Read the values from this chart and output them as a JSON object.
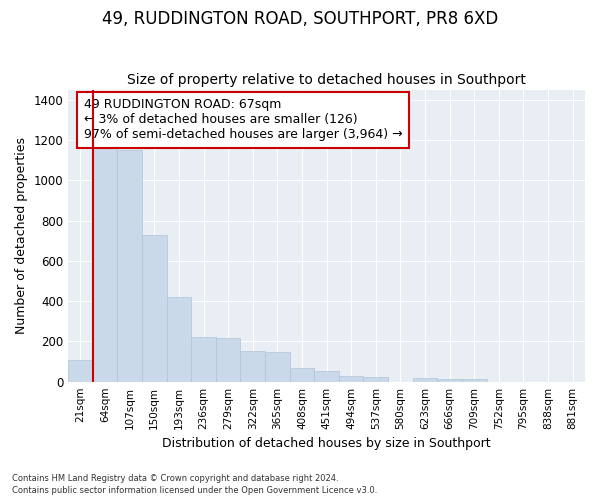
{
  "title1": "49, RUDDINGTON ROAD, SOUTHPORT, PR8 6XD",
  "title2": "Size of property relative to detached houses in Southport",
  "xlabel": "Distribution of detached houses by size in Southport",
  "ylabel": "Number of detached properties",
  "categories": [
    "21sqm",
    "64sqm",
    "107sqm",
    "150sqm",
    "193sqm",
    "236sqm",
    "279sqm",
    "322sqm",
    "365sqm",
    "408sqm",
    "451sqm",
    "494sqm",
    "537sqm",
    "580sqm",
    "623sqm",
    "666sqm",
    "709sqm",
    "752sqm",
    "795sqm",
    "838sqm",
    "881sqm"
  ],
  "values": [
    107,
    1160,
    1150,
    730,
    420,
    220,
    218,
    150,
    148,
    70,
    53,
    30,
    25,
    0,
    16,
    14,
    15,
    0,
    0,
    0,
    0
  ],
  "bar_color": "#c9d9ea",
  "bar_edge_color": "#b0c4d8",
  "highlight_bar_index": 1,
  "highlight_color": "#cc0000",
  "annotation_line1": "49 RUDDINGTON ROAD: 67sqm",
  "annotation_line2": "← 3% of detached houses are smaller (126)",
  "annotation_line3": "97% of semi-detached houses are larger (3,964) →",
  "ylim": [
    0,
    1450
  ],
  "yticks": [
    0,
    200,
    400,
    600,
    800,
    1000,
    1200,
    1400
  ],
  "footer1": "Contains HM Land Registry data © Crown copyright and database right 2024.",
  "footer2": "Contains public sector information licensed under the Open Government Licence v3.0.",
  "bg_color": "#e8eef4",
  "title1_fontsize": 12,
  "title2_fontsize": 10,
  "ylabel_fontsize": 9,
  "xlabel_fontsize": 9,
  "annotation_fontsize": 9
}
